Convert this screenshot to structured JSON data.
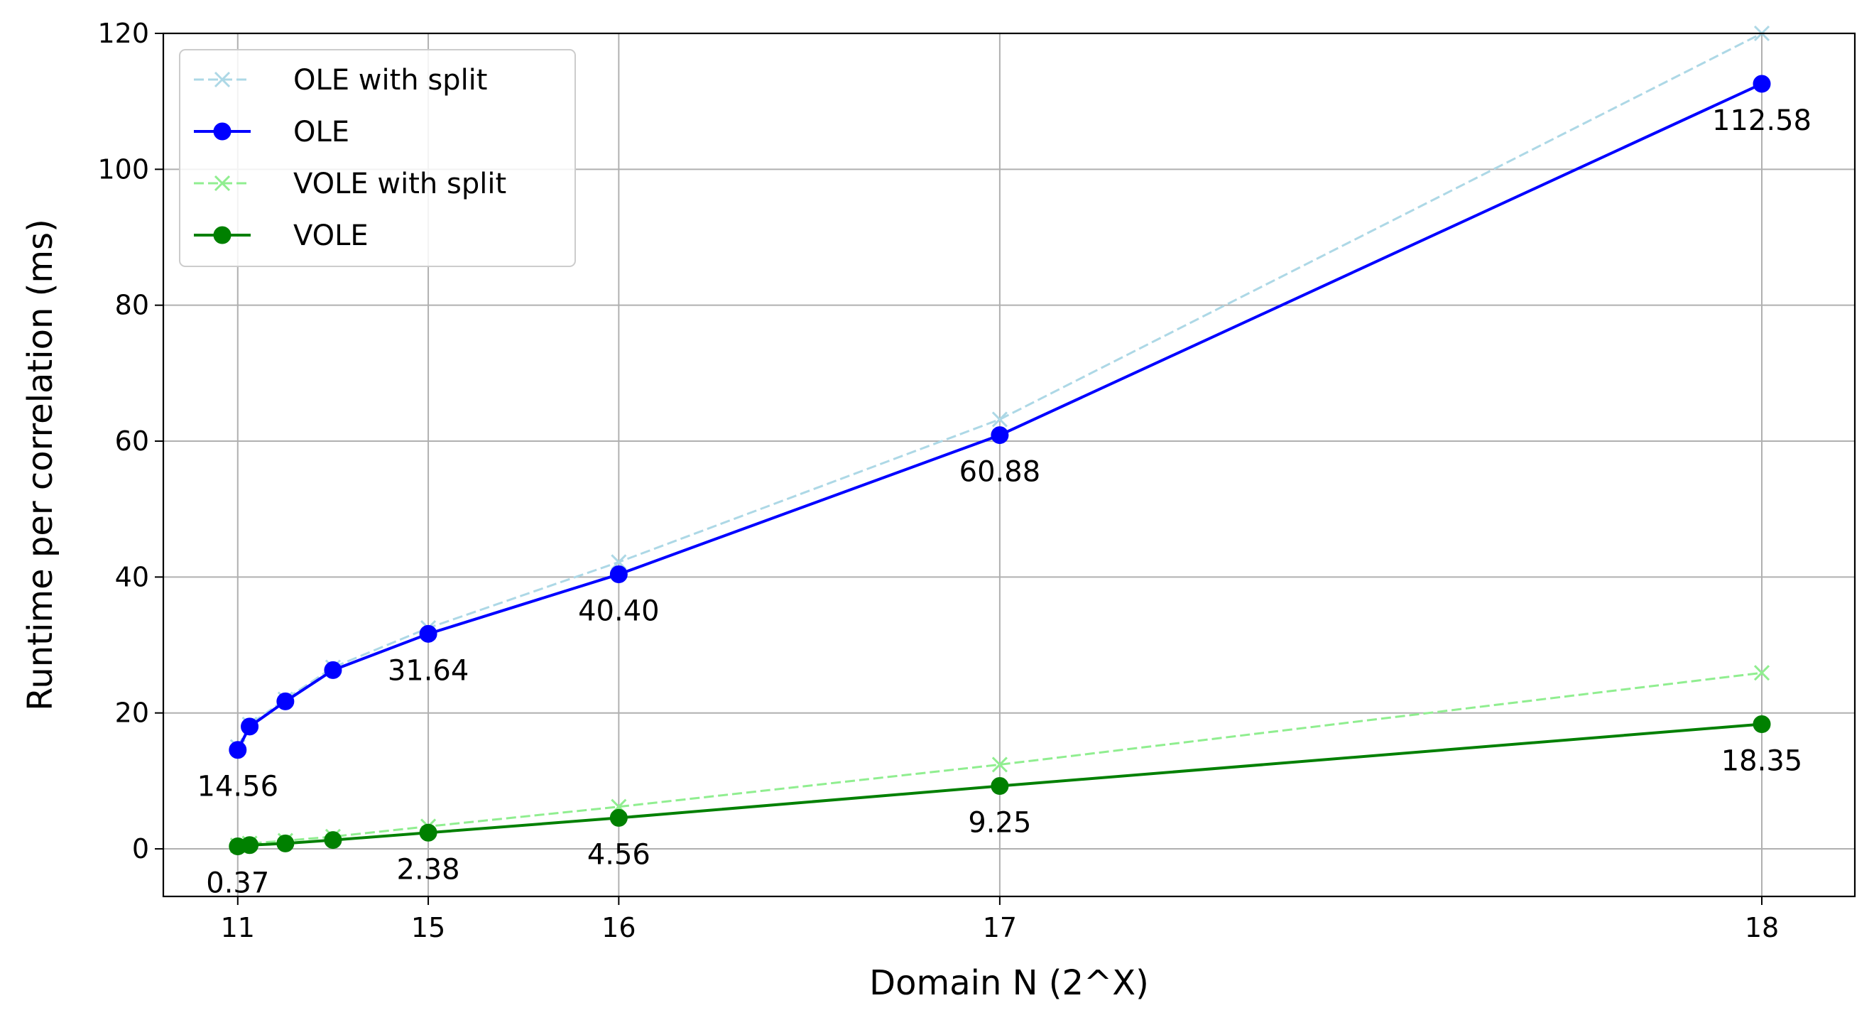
{
  "chart_data": {
    "type": "line",
    "xlabel": "Domain N (2^X)",
    "ylabel": "Runtime per correlation (ms)",
    "ylim": [
      -7,
      120
    ],
    "grid": true,
    "legend_position": "top-left",
    "x_ticks": [
      {
        "label": "11",
        "x": 0
      },
      {
        "label": "15",
        "x": 4096
      },
      {
        "label": "16",
        "x": 8192
      },
      {
        "label": "17",
        "x": 16384
      },
      {
        "label": "18",
        "x": 32768
      }
    ],
    "y_ticks": [
      0,
      20,
      40,
      60,
      80,
      100,
      120
    ],
    "series": [
      {
        "name": "OLE with split",
        "color": "#add8e6",
        "style": "dashed",
        "marker": "x",
        "x": [
          0,
          256,
          1024,
          2048,
          4096,
          8192,
          16384,
          32768
        ],
        "y": [
          15.0,
          18.3,
          22.0,
          26.7,
          32.5,
          42.2,
          63.2,
          120.0
        ]
      },
      {
        "name": "OLE",
        "color": "#0000ff",
        "style": "solid",
        "marker": "o",
        "x": [
          0,
          256,
          1024,
          2048,
          4096,
          8192,
          16384,
          32768
        ],
        "y": [
          14.56,
          18.0,
          21.7,
          26.3,
          31.64,
          40.4,
          60.88,
          112.58
        ]
      },
      {
        "name": "VOLE with split",
        "color": "#90ee90",
        "style": "dashed",
        "marker": "x",
        "x": [
          0,
          256,
          1024,
          2048,
          4096,
          8192,
          16384,
          32768
        ],
        "y": [
          0.5,
          0.8,
          1.2,
          1.8,
          3.3,
          6.2,
          12.4,
          25.9
        ]
      },
      {
        "name": "VOLE",
        "color": "#008000",
        "style": "solid",
        "marker": "o",
        "x": [
          0,
          256,
          1024,
          2048,
          4096,
          8192,
          16384,
          32768
        ],
        "y": [
          0.37,
          0.55,
          0.8,
          1.3,
          2.38,
          4.56,
          9.25,
          18.35
        ]
      }
    ],
    "annotations": [
      {
        "text": "14.56",
        "x": 0,
        "y": 14.56
      },
      {
        "text": "31.64",
        "x": 4096,
        "y": 31.64
      },
      {
        "text": "40.40",
        "x": 8192,
        "y": 40.4
      },
      {
        "text": "60.88",
        "x": 16384,
        "y": 60.88
      },
      {
        "text": "112.58",
        "x": 32768,
        "y": 112.58
      },
      {
        "text": "0.37",
        "x": 0,
        "y": 0.37
      },
      {
        "text": "2.38",
        "x": 4096,
        "y": 2.38
      },
      {
        "text": "4.56",
        "x": 8192,
        "y": 4.56
      },
      {
        "text": "9.25",
        "x": 16384,
        "y": 9.25
      },
      {
        "text": "18.35",
        "x": 32768,
        "y": 18.35
      }
    ]
  }
}
